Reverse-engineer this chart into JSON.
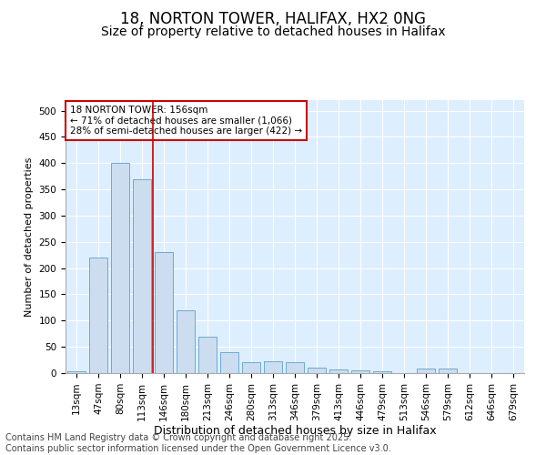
{
  "title": "18, NORTON TOWER, HALIFAX, HX2 0NG",
  "subtitle": "Size of property relative to detached houses in Halifax",
  "xlabel": "Distribution of detached houses by size in Halifax",
  "ylabel": "Number of detached properties",
  "categories": [
    "13sqm",
    "47sqm",
    "80sqm",
    "113sqm",
    "146sqm",
    "180sqm",
    "213sqm",
    "246sqm",
    "280sqm",
    "313sqm",
    "346sqm",
    "379sqm",
    "413sqm",
    "446sqm",
    "479sqm",
    "513sqm",
    "546sqm",
    "579sqm",
    "612sqm",
    "646sqm",
    "679sqm"
  ],
  "values": [
    3,
    220,
    400,
    370,
    230,
    120,
    70,
    40,
    20,
    22,
    20,
    10,
    7,
    5,
    3,
    0,
    8,
    8,
    0,
    0,
    0
  ],
  "bar_color": "#ccddef",
  "bar_edge_color": "#6aaad4",
  "background_color": "#ddeeff",
  "grid_color": "#ffffff",
  "vline_x": 3.5,
  "vline_color": "#cc0000",
  "annotation_text": "18 NORTON TOWER: 156sqm\n← 71% of detached houses are smaller (1,066)\n28% of semi-detached houses are larger (422) →",
  "annotation_box_facecolor": "#ffffff",
  "annotation_box_edgecolor": "#cc0000",
  "fig_facecolor": "#ffffff",
  "ylim": [
    0,
    520
  ],
  "yticks": [
    0,
    50,
    100,
    150,
    200,
    250,
    300,
    350,
    400,
    450,
    500
  ],
  "footer": "Contains HM Land Registry data © Crown copyright and database right 2025.\nContains public sector information licensed under the Open Government Licence v3.0.",
  "title_fontsize": 12,
  "subtitle_fontsize": 10,
  "footer_fontsize": 7,
  "annot_fontsize": 7.5,
  "xlabel_fontsize": 9,
  "ylabel_fontsize": 8,
  "tick_fontsize": 7.5
}
